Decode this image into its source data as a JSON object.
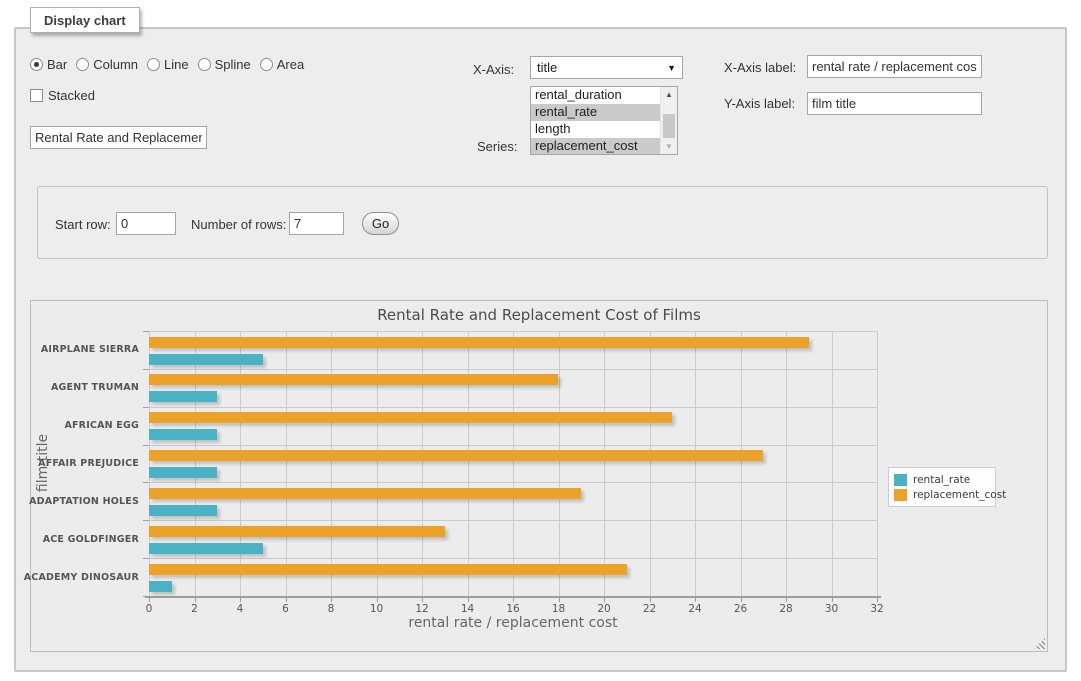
{
  "fieldset": {
    "legend": "Display chart"
  },
  "chart_type": {
    "options": [
      {
        "label": "Bar",
        "selected": true
      },
      {
        "label": "Column",
        "selected": false
      },
      {
        "label": "Line",
        "selected": false
      },
      {
        "label": "Spline",
        "selected": false
      },
      {
        "label": "Area",
        "selected": false
      }
    ]
  },
  "stacked": {
    "label": "Stacked",
    "checked": false
  },
  "title_input": {
    "value": "Rental Rate and Replacement Cost of Films"
  },
  "x_axis": {
    "label": "X-Axis:",
    "value": "title"
  },
  "series_select": {
    "label": "Series:",
    "options": [
      {
        "label": "rental_duration",
        "selected": false
      },
      {
        "label": "rental_rate",
        "selected": true
      },
      {
        "label": "length",
        "selected": false
      },
      {
        "label": "replacement_cost",
        "selected": true
      }
    ]
  },
  "x_axis_label": {
    "label": "X-Axis label:",
    "value": "rental rate / replacement cost"
  },
  "y_axis_label": {
    "label": "Y-Axis label:",
    "value": "film title"
  },
  "row_controls": {
    "start_row_label": "Start row:",
    "start_row_value": "0",
    "num_rows_label": "Number of rows:",
    "num_rows_value": "7",
    "go_label": "Go"
  },
  "chart_data": {
    "type": "bar",
    "orientation": "horizontal",
    "title": "Rental Rate and Replacement Cost of Films",
    "categories": [
      "AIRPLANE SIERRA",
      "AGENT TRUMAN",
      "AFRICAN EGG",
      "AFFAIR PREJUDICE",
      "ADAPTATION HOLES",
      "ACE GOLDFINGER",
      "ACADEMY DINOSAUR"
    ],
    "series": [
      {
        "name": "rental_rate",
        "color": "#4bb2c5",
        "values": [
          4.99,
          2.99,
          2.99,
          2.99,
          2.99,
          4.99,
          0.99
        ]
      },
      {
        "name": "replacement_cost",
        "color": "#eaa228",
        "values": [
          28.99,
          17.99,
          22.99,
          26.99,
          18.99,
          12.99,
          20.99
        ]
      }
    ],
    "xlabel": "rental rate / replacement cost",
    "ylabel": "film title",
    "xlim": [
      0,
      32
    ],
    "xticks": [
      0,
      2,
      4,
      6,
      8,
      10,
      12,
      14,
      16,
      18,
      20,
      22,
      24,
      26,
      28,
      30,
      32
    ],
    "grid": true,
    "legend_position": "right"
  },
  "colors": {
    "rental_rate": "#4bb2c5",
    "replacement_cost": "#eaa228",
    "panel_background": "#ededee",
    "grid_line": "#cbcbcb"
  }
}
